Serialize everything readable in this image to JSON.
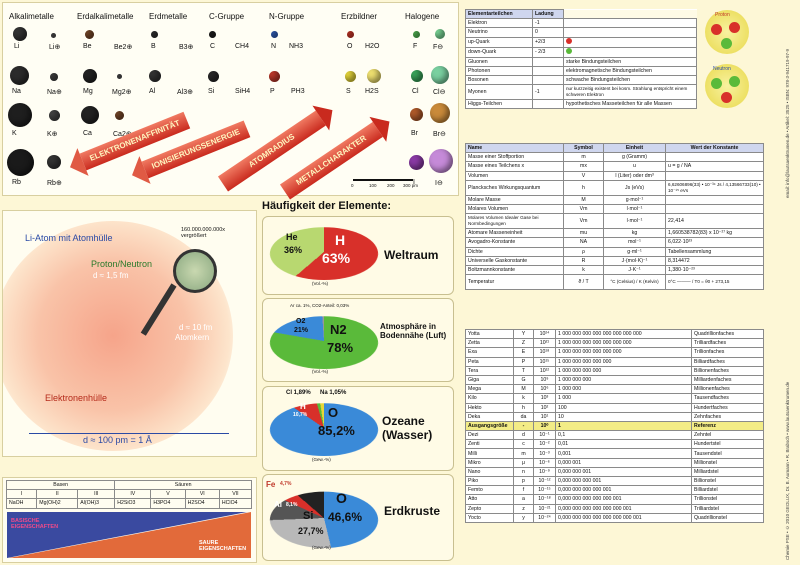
{
  "groups": [
    "Alkalimetalle",
    "Erdalkalimetalle",
    "Erdmetalle",
    "C-Gruppe",
    "N-Gruppe",
    "Erzbildner",
    "Halogene"
  ],
  "elements": {
    "row1": [
      "Li",
      "Li⊕",
      "Be",
      "Be2⊕",
      "B",
      "B3⊕",
      "C",
      "CH4",
      "N",
      "NH3",
      "O",
      "H2O",
      "F",
      "F⊖"
    ],
    "row2": [
      "Na",
      "Na⊕",
      "Mg",
      "Mg2⊕",
      "Al",
      "Al3⊕",
      "Si",
      "SiH4",
      "P",
      "PH3",
      "S",
      "H2S",
      "Cl",
      "Cl⊖"
    ],
    "row3": [
      "K",
      "K⊕",
      "Ca",
      "Ca2⊕",
      "Br",
      "Br⊖"
    ],
    "row4": [
      "Rb",
      "Rb⊕",
      "I",
      "I⊖"
    ]
  },
  "trend_arrows": [
    "ELEKTRONENAFFINITÄT",
    "IONISIERUNGSENERGIE",
    "ATOMRADIUS",
    "METALLCHARAKTER"
  ],
  "scale_bar": {
    "ticks": [
      "0",
      "100",
      "200",
      "300 pm"
    ]
  },
  "atom_panel": {
    "title": "Li-Atom mit Atomhülle",
    "magnification": "160.000.000.000x vergrößert",
    "nucleus_label": "Proton/Neutron",
    "nucleus_size": "d ≈ 1,5 fm",
    "kern_size": "d ≈ 10 fm",
    "kern_label": "Atomkern",
    "shell_label": "Elektronenhülle",
    "shell_size": "d ≈ 100 pm = 1 Å"
  },
  "acid_base": {
    "basen": "Basen",
    "saeuren": "Säuren",
    "numerals": [
      "I",
      "II",
      "III",
      "IV",
      "V",
      "VI",
      "VII"
    ],
    "formulas": [
      "NaOH",
      "Mg(OH)2",
      "Al(OH)3",
      "H2SiO3",
      "H3PO4",
      "H2SO4",
      "HClO4"
    ],
    "basic_label": "BASISCHE EIGENSCHAFTEN",
    "acid_label": "SAURE EIGENSCHAFTEN"
  },
  "abundance": {
    "heading": "Häufigkeit der Elemente:",
    "charts": [
      {
        "title": "Weltraum",
        "slices": [
          {
            "label": "H",
            "value": "63%"
          },
          {
            "label": "He",
            "value": "36%"
          }
        ],
        "note": "(Vol.-%)"
      },
      {
        "title": "Atmosphäre in Bodennähe (Luft)",
        "slices": [
          {
            "label": "N2",
            "value": "78%"
          },
          {
            "label": "O2",
            "value": "21%"
          }
        ],
        "note": "(Vol.-%)",
        "small": "Ar ca. 1%, CO2-Anteil: 0,03%"
      },
      {
        "title": "Ozeane (Wasser)",
        "slices": [
          {
            "label": "O",
            "value": "85,2%"
          },
          {
            "label": "H",
            "value": "10,7%"
          }
        ],
        "note": "(Gew.-%)",
        "small1": "Cl 1,89%",
        "small2": "Na 1,05%"
      },
      {
        "title": "Erdkruste",
        "slices": [
          {
            "label": "O",
            "value": "46,6%"
          },
          {
            "label": "Si",
            "value": "27,7%"
          },
          {
            "label": "Al",
            "value": "8,1%"
          },
          {
            "label": "Fe",
            "value": "4,7%"
          }
        ],
        "note": "(Gew.-%)"
      }
    ]
  },
  "particles": {
    "headers": [
      "Elementarteilchen",
      "Ladung"
    ],
    "rows": [
      [
        "Elektron",
        "-1",
        ""
      ],
      [
        "Neutrino",
        "0",
        ""
      ],
      [
        "up-Quark",
        "+2/3",
        ""
      ],
      [
        "down-Quark",
        "- 2/3",
        ""
      ],
      [
        "Gluonen",
        "",
        "starke Bindungsteilchen"
      ],
      [
        "Photonen",
        "",
        "elektromagnetische Bindungsteilchen"
      ],
      [
        "Bosonen",
        "",
        "schwache Bindungsteilchen"
      ],
      [
        "Myonen",
        "-1",
        "nur kurzzeitig existent bei kosm. Strahlung entspricht einem schweren Elektron"
      ],
      [
        "Higgs-Teilchen",
        "",
        "hypothetisches Masseteilchen für alle Massen"
      ]
    ],
    "proton": "Proton",
    "neutron": "Neutron"
  },
  "constants": {
    "headers": [
      "Name",
      "Symbol",
      "Einheit",
      "Wert der Konstante"
    ],
    "rows": [
      [
        "Masse einer Stoffportion",
        "m",
        "g (Gramm)",
        ""
      ],
      [
        "Masse eines Teilchens x",
        "mx",
        "u",
        "u = g / NA"
      ],
      [
        "Volumen",
        "V",
        "l (Liter) oder dm³",
        ""
      ],
      [
        "Plancksches Wirkungsquantum",
        "h",
        "Js (eVs)",
        "6,62606896(33) • 10⁻³⁴ Js / 4,13566733(10) • 10⁻¹⁵ eVs"
      ],
      [
        "Molare Masse",
        "M",
        "g·mol⁻¹",
        ""
      ],
      [
        "Molares Volumen",
        "Vm",
        "l·mol⁻¹",
        ""
      ],
      [
        "Molares Volumen Idealer Gase bei Normbedingungen",
        "Vm",
        "l·mol⁻¹",
        "22,414"
      ],
      [
        "Atomare Masseneinheit",
        "mu",
        "kg",
        "1,660538782(83) x 10⁻²⁷ kg"
      ],
      [
        "Avogadro-Konstante",
        "NA",
        "mol⁻¹",
        "6,022·10²³"
      ],
      [
        "Dichte",
        "ρ",
        "g·ml⁻¹",
        "Tabellensammlung"
      ],
      [
        "Universelle Gaskonstante",
        "R",
        "J·(mol·K)⁻¹",
        "8,314472"
      ],
      [
        "Boltzmannkonstante",
        "k",
        "J·K⁻¹",
        "1,380·10⁻²³"
      ],
      [
        "Temperatur",
        "ϑ / T",
        "°C (Celsius) / K (Kelvin)",
        "0°C ——— / T0 = ϑ0 + 273,15"
      ]
    ]
  },
  "prefixes": {
    "top": [
      [
        "Yotta",
        "Y",
        "10²⁴",
        "1 000 000 000 000 000 000 000 000",
        "Quadrillionfaches"
      ],
      [
        "Zetta",
        "Z",
        "10²¹",
        "1 000 000 000 000 000 000 000",
        "Trilliardfaches"
      ],
      [
        "Exa",
        "E",
        "10¹⁸",
        "1 000 000 000 000 000 000",
        "Trillionfaches"
      ],
      [
        "Peta",
        "P",
        "10¹⁵",
        "1 000 000 000 000 000",
        "Billiardfaches"
      ],
      [
        "Tera",
        "T",
        "10¹²",
        "1 000 000 000 000",
        "Billionenfaches"
      ],
      [
        "Giga",
        "G",
        "10⁹",
        "1 000 000 000",
        "Milliardenfaches"
      ],
      [
        "Mega",
        "M",
        "10⁶",
        "1 000 000",
        "Millionenfaches"
      ],
      [
        "Kilo",
        "k",
        "10³",
        "1 000",
        "Tausendfaches"
      ],
      [
        "Hekto",
        "h",
        "10²",
        "100",
        "Hundertfaches"
      ],
      [
        "Deka",
        "da",
        "10¹",
        "10",
        "Zehnfaches"
      ]
    ],
    "mid": [
      "Ausgangsgröße",
      "-",
      "10⁰",
      "1",
      "Referenz"
    ],
    "bottom": [
      [
        "Dezi",
        "d",
        "10⁻¹",
        "0,1",
        "Zehntel"
      ],
      [
        "Zenti",
        "c",
        "10⁻²",
        "0,01",
        "Hundertstel"
      ],
      [
        "Milli",
        "m",
        "10⁻³",
        "0,001",
        "Tausendstel"
      ],
      [
        "Mikro",
        "μ",
        "10⁻⁶",
        "0,000 001",
        "Millionstel"
      ],
      [
        "Nano",
        "n",
        "10⁻⁹",
        "0,000 000 001",
        "Milliardstel"
      ],
      [
        "Piko",
        "p",
        "10⁻¹²",
        "0,000 000 000 001",
        "Billionstel"
      ],
      [
        "Femto",
        "f",
        "10⁻¹⁵",
        "0,000 000 000 000 001",
        "Billiardstel"
      ],
      [
        "Atto",
        "a",
        "10⁻¹⁸",
        "0,000 000 000 000 000 001",
        "Trillionstel"
      ],
      [
        "Zepto",
        "z",
        "10⁻²¹",
        "0,000 000 000 000 000 000 001",
        "Trilliardstel"
      ],
      [
        "Yocto",
        "y",
        "10⁻²⁴",
        "0,000 000 000 000 000 000 000 001",
        "Quadrillionstel"
      ]
    ]
  },
  "side_text": {
    "right1": "email: info@lautsaenktrumen.de • Artikel: 3525 • ISBN: 978-3-941719-97-9",
    "right2": "Chemie PSE • © 2010 GEOLUX, Dr. B. Aumann • R. Brabsch • www.lautsaenktrumen.de"
  },
  "colors": {
    "accent_red": "#c92a1e",
    "table_header": "#cfd6ee",
    "highlight": "#f3ec86"
  }
}
